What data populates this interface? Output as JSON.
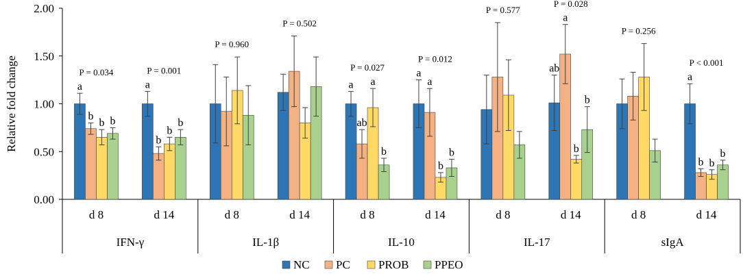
{
  "chart_data": {
    "type": "bar",
    "ylabel": "Relative fold change",
    "ylim": [
      0,
      2
    ],
    "yticks": [
      "0.00",
      "0.50",
      "1.00",
      "1.50",
      "2.00"
    ],
    "grid": false,
    "legend_position": "bottom-center",
    "series": [
      {
        "name": "NC",
        "color": "#2e75b6"
      },
      {
        "name": "PC",
        "color": "#f4b183"
      },
      {
        "name": "PROB",
        "color": "#ffd966"
      },
      {
        "name": "PPEO",
        "color": "#a9d18e"
      }
    ],
    "groups": [
      {
        "name": "IFN-γ",
        "subgroups": [
          {
            "day": "d 8",
            "p": "P = 0.034",
            "values": [
              1.0,
              0.74,
              0.65,
              0.69
            ],
            "errors": [
              0.11,
              0.06,
              0.08,
              0.06
            ],
            "letters": [
              "a",
              "b",
              "b",
              "b"
            ]
          },
          {
            "day": "d 14",
            "p": "P = 0.001",
            "values": [
              1.0,
              0.48,
              0.58,
              0.65
            ],
            "errors": [
              0.13,
              0.07,
              0.07,
              0.08
            ],
            "letters": [
              "a",
              "b",
              "b",
              "b"
            ]
          }
        ]
      },
      {
        "name": "IL-1β",
        "subgroups": [
          {
            "day": "d 8",
            "p": "P = 0.960",
            "values": [
              1.0,
              0.92,
              1.14,
              0.88
            ],
            "errors": [
              0.41,
              0.36,
              0.35,
              0.31
            ],
            "letters": [
              "",
              "",
              "",
              ""
            ]
          },
          {
            "day": "d 14",
            "p": "P = 0.502",
            "values": [
              1.12,
              1.34,
              0.8,
              1.18
            ],
            "errors": [
              0.19,
              0.37,
              0.16,
              0.31
            ],
            "letters": [
              "",
              "",
              "",
              ""
            ]
          }
        ]
      },
      {
        "name": "IL-10",
        "subgroups": [
          {
            "day": "d 8",
            "p": "P = 0.027",
            "values": [
              1.0,
              0.58,
              0.96,
              0.36
            ],
            "errors": [
              0.13,
              0.15,
              0.2,
              0.07
            ],
            "letters": [
              "a",
              "ab",
              "a",
              "b"
            ]
          },
          {
            "day": "d 14",
            "p": "P = 0.012",
            "values": [
              1.0,
              0.91,
              0.23,
              0.33
            ],
            "errors": [
              0.25,
              0.25,
              0.05,
              0.09
            ],
            "letters": [
              "a",
              "a",
              "b",
              "b"
            ]
          }
        ]
      },
      {
        "name": "IL-17",
        "subgroups": [
          {
            "day": "d 8",
            "p": "P = 0.577",
            "values": [
              0.94,
              1.28,
              1.09,
              0.57
            ],
            "errors": [
              0.36,
              0.57,
              0.37,
              0.14
            ],
            "letters": [
              "",
              "",
              "",
              ""
            ]
          },
          {
            "day": "d 14",
            "p": "P = 0.028",
            "values": [
              1.01,
              1.52,
              0.42,
              0.73
            ],
            "errors": [
              0.29,
              0.31,
              0.04,
              0.24
            ],
            "letters": [
              "ab",
              "a",
              "b",
              "b"
            ]
          }
        ]
      },
      {
        "name": "sIgA",
        "subgroups": [
          {
            "day": "d 8",
            "p": "P = 0.256",
            "values": [
              1.0,
              1.08,
              1.28,
              0.51
            ],
            "errors": [
              0.26,
              0.25,
              0.35,
              0.12
            ],
            "letters": [
              "",
              "",
              "",
              ""
            ]
          },
          {
            "day": "d 14",
            "p": "P < 0.001",
            "values": [
              1.0,
              0.28,
              0.26,
              0.36
            ],
            "errors": [
              0.21,
              0.04,
              0.05,
              0.05
            ],
            "letters": [
              "a",
              "b",
              "b",
              "b"
            ]
          }
        ]
      }
    ]
  }
}
